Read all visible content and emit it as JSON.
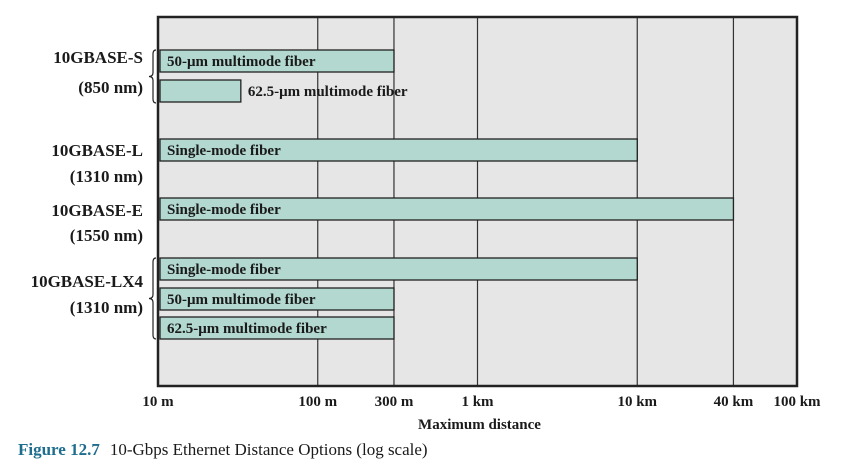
{
  "caption": {
    "label": "Figure 12.7",
    "text": "10-Gbps Ethernet Distance Options (log scale)"
  },
  "colors": {
    "plot_background": "#e6e6e6",
    "bar_fill": "#b2d8cf",
    "frame": "#222222",
    "caption_accent": "#1f6d8e"
  },
  "chart_data": {
    "type": "bar",
    "orientation": "horizontal",
    "xscale": "log",
    "xlabel": "Maximum distance",
    "xlim_m": [
      10,
      100000
    ],
    "xticks": [
      {
        "value_m": 10,
        "label": "10 m"
      },
      {
        "value_m": 100,
        "label": "100 m"
      },
      {
        "value_m": 300,
        "label": "300 m"
      },
      {
        "value_m": 1000,
        "label": "1 km"
      },
      {
        "value_m": 10000,
        "label": "10 km"
      },
      {
        "value_m": 40000,
        "label": "40 km"
      },
      {
        "value_m": 100000,
        "label": "100 km"
      }
    ],
    "groups": [
      {
        "name": "10GBASE-S",
        "wavelength": "(850 nm)",
        "bracket": true
      },
      {
        "name": "10GBASE-L",
        "wavelength": "(1310 nm)",
        "bracket": false
      },
      {
        "name": "10GBASE-E",
        "wavelength": "(1550 nm)",
        "bracket": false
      },
      {
        "name": "10GBASE-LX4",
        "wavelength": "(1310 nm)",
        "bracket": true
      }
    ],
    "bars": [
      {
        "group": "10GBASE-S",
        "label": "50-μm multimode fiber",
        "max_distance_m": 300,
        "label_inside": true
      },
      {
        "group": "10GBASE-S",
        "label": "62.5-μm multimode fiber",
        "max_distance_m": 33,
        "label_inside": false
      },
      {
        "group": "10GBASE-L",
        "label": "Single-mode fiber",
        "max_distance_m": 10000,
        "label_inside": true
      },
      {
        "group": "10GBASE-E",
        "label": "Single-mode fiber",
        "max_distance_m": 40000,
        "label_inside": true
      },
      {
        "group": "10GBASE-LX4",
        "label": "Single-mode fiber",
        "max_distance_m": 10000,
        "label_inside": true
      },
      {
        "group": "10GBASE-LX4",
        "label": "50-μm multimode fiber",
        "max_distance_m": 300,
        "label_inside": true
      },
      {
        "group": "10GBASE-LX4",
        "label": "62.5-μm multimode fiber",
        "max_distance_m": 300,
        "label_inside": true
      }
    ]
  }
}
